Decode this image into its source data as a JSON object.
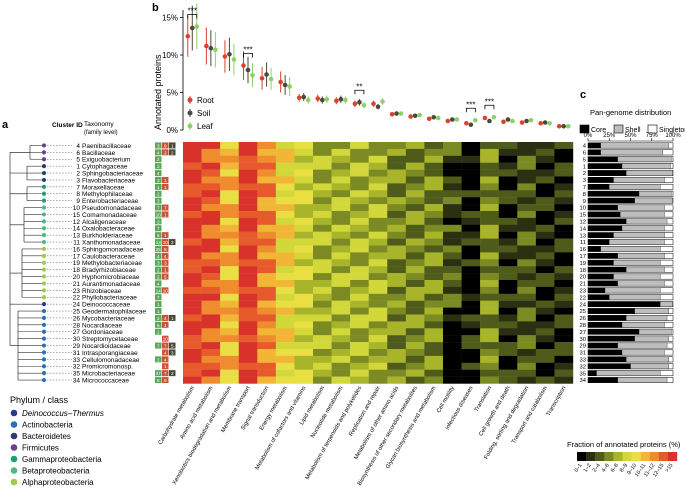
{
  "panels": {
    "a": "a",
    "b": "b",
    "c": "c"
  },
  "tree_header": {
    "cluster_id": "Cluster ID",
    "taxonomy": "Taxonomy",
    "taxonomy_sub": "(family level)"
  },
  "phylum_legend": {
    "title": "Phylum / class",
    "items": [
      {
        "label": "Deinococcus–Thermus",
        "color": "#2b3a8c",
        "italic": true
      },
      {
        "label": "Actinobacteria",
        "color": "#2f6fb5"
      },
      {
        "label": "Bacteroidetes",
        "color": "#2a3f6e"
      },
      {
        "label": "Firmicutes",
        "color": "#6b3f8f"
      },
      {
        "label": "Gammaproteobacteria",
        "color": "#1f9e74"
      },
      {
        "label": "Betaproteobacteria",
        "color": "#52b788"
      },
      {
        "label": "Alphaproteobacteria",
        "color": "#9ccc4a"
      }
    ]
  },
  "families": [
    {
      "id": "4",
      "name": "Paenibacillaceae",
      "green": "3",
      "red": "9",
      "dark": "1",
      "core": 0.15,
      "shell": 0.8
    },
    {
      "id": "6",
      "name": "Bacillaceae",
      "green": "4",
      "red": "2",
      "dark": "2",
      "core": 0.15,
      "shell": 0.73
    },
    {
      "id": "5",
      "name": "Exiguobacterium",
      "green": "2",
      "red": "",
      "dark": "",
      "core": 0.35,
      "shell": 0.63
    },
    {
      "id": "1",
      "name": "Cytophagaceae",
      "green": "2",
      "red": "",
      "dark": "",
      "core": 0.4,
      "shell": 0.57
    },
    {
      "id": "2",
      "name": "Sphingobacteriaceae",
      "green": "4",
      "red": "",
      "dark": "",
      "core": 0.45,
      "shell": 0.54
    },
    {
      "id": "3",
      "name": "Flavobacteriaceae",
      "green": "3",
      "red": "1",
      "dark": "",
      "core": 0.3,
      "shell": 0.6
    },
    {
      "id": "7",
      "name": "Moraxellaceae",
      "green": "1",
      "red": "1",
      "dark": "",
      "core": 0.25,
      "shell": 0.6
    },
    {
      "id": "8",
      "name": "Methylophilaceae",
      "green": "2",
      "red": "",
      "dark": "",
      "core": 0.6,
      "shell": 0.38
    },
    {
      "id": "9",
      "name": "Enterobacteriaceae",
      "green": "3",
      "red": "",
      "dark": "",
      "core": 0.55,
      "shell": 0.44
    },
    {
      "id": "10",
      "name": "Pseudomonadaceae",
      "green": "7",
      "red": "7",
      "dark": "",
      "core": 0.35,
      "shell": 0.55
    },
    {
      "id": "15",
      "name": "Comamonadaceae",
      "green": "10",
      "red": "1",
      "dark": "",
      "core": 0.38,
      "shell": 0.52
    },
    {
      "id": "12",
      "name": "Alcaligenaceae",
      "green": "3",
      "red": "",
      "dark": "",
      "core": 0.45,
      "shell": 0.48
    },
    {
      "id": "14",
      "name": "Oxalobacteraceae",
      "green": "7",
      "red": "",
      "dark": "",
      "core": 0.4,
      "shell": 0.5
    },
    {
      "id": "13",
      "name": "Burkholderiaceae",
      "green": "5",
      "red": "1",
      "dark": "",
      "core": 0.3,
      "shell": 0.6
    },
    {
      "id": "11",
      "name": "Xanthomonadaceae",
      "green": "13",
      "red": "10",
      "dark": "2",
      "core": 0.25,
      "shell": 0.65
    },
    {
      "id": "16",
      "name": "Sphingomonadaceae",
      "green": "25",
      "red": "8",
      "dark": "",
      "core": 0.15,
      "shell": 0.7
    },
    {
      "id": "17",
      "name": "Caulobacteraceae",
      "green": "4",
      "red": "4",
      "dark": "",
      "core": 0.35,
      "shell": 0.55
    },
    {
      "id": "19",
      "name": "Methylobacteriaceae",
      "green": "3",
      "red": "3",
      "dark": "",
      "core": 0.3,
      "shell": 0.55
    },
    {
      "id": "18",
      "name": "Bradyrhizobiaceae",
      "green": "2",
      "red": "1",
      "dark": "",
      "core": 0.45,
      "shell": 0.45
    },
    {
      "id": "20",
      "name": "Hyphomicrobiaceae",
      "green": "2",
      "red": "5",
      "dark": "",
      "core": 0.3,
      "shell": 0.55
    },
    {
      "id": "21",
      "name": "Aurantimonadaceae",
      "green": "4",
      "red": "",
      "dark": "",
      "core": 0.35,
      "shell": 0.55
    },
    {
      "id": "23",
      "name": "Rhizobiaceae",
      "green": "14",
      "red": "10",
      "dark": "",
      "core": 0.2,
      "shell": 0.65
    },
    {
      "id": "22",
      "name": "Phyllobacteriaceae",
      "green": "7",
      "red": "",
      "dark": "",
      "core": 0.25,
      "shell": 0.6
    },
    {
      "id": "24",
      "name": "Deinococcaceae",
      "green": "1",
      "red": "",
      "dark": "",
      "core": 0.85,
      "shell": 0.14
    },
    {
      "id": "25",
      "name": "Geodermatophilaceae",
      "green": "1",
      "red": "",
      "dark": "",
      "core": 0.55,
      "shell": 0.4
    },
    {
      "id": "26",
      "name": "Mycobacteriaceae",
      "green": "2",
      "red": "4",
      "dark": "1",
      "core": 0.45,
      "shell": 0.48
    },
    {
      "id": "28",
      "name": "Nocardiaceae",
      "green": "6",
      "red": "1",
      "dark": "",
      "core": 0.4,
      "shell": 0.5
    },
    {
      "id": "27",
      "name": "Gordoniaceae",
      "green": "1",
      "red": "",
      "dark": "",
      "core": 0.6,
      "shell": 0.38
    },
    {
      "id": "30",
      "name": "Streptomycetaceae",
      "green": "",
      "red": "10",
      "dark": "",
      "core": 0.55,
      "shell": 0.4
    },
    {
      "id": "29",
      "name": "Nocardioidaceae",
      "green": "7",
      "red": "7",
      "dark": "5",
      "core": 0.35,
      "shell": 0.58
    },
    {
      "id": "31",
      "name": "Intrasporangiaceae",
      "green": "",
      "red": "4",
      "dark": "3",
      "core": 0.4,
      "shell": 0.5
    },
    {
      "id": "33",
      "name": "Cellulomonadaceae",
      "green": "2",
      "red": "4",
      "dark": "",
      "core": 0.45,
      "shell": 0.5
    },
    {
      "id": "32",
      "name": "Promicromonosp.",
      "green": "",
      "red": "1",
      "dark": "",
      "core": 0.5,
      "shell": 0.45
    },
    {
      "id": "35",
      "name": "Microbacteriaceae",
      "green": "37",
      "red": "7",
      "dark": "2",
      "core": 0.1,
      "shell": 0.75
    },
    {
      "id": "34",
      "name": "Micrococcaceae",
      "green": "6",
      "red": "9",
      "dark": "",
      "core": 0.35,
      "shell": 0.58
    }
  ],
  "heatmap": {
    "categories": [
      "Carbohydrate metabolism",
      "Amino acid metabolism",
      "Xenobiotics biodegradation and metabolism",
      "Membrane transport",
      "Signal transduction",
      "Energy metabolism",
      "Metabolism of cofactors and vitamins",
      "Lipid metabolism",
      "Nucleotide metabolism",
      "Metabolism of terpenoids and polyketides",
      "Replication and repair",
      "Metabolism of other amino acids",
      "Biosynthesis of other secondary metabolites",
      "Glycan biosynthesis and metabolism",
      "Cell motility",
      "Infectious diseases",
      "Translation",
      "Cell growth and death",
      "Folding, sorting and degradation",
      "Transport and catabolism",
      "Transcription"
    ],
    "legend_title": "Fraction of annotated proteins (%)",
    "legend_bins": [
      "0–1",
      "1–2",
      "2–4",
      "4–6",
      "6–8",
      "8–9",
      "9–10",
      "10–11",
      "11–12",
      "12–15",
      ">15"
    ],
    "legend_colors": [
      "#000000",
      "#2b3012",
      "#4e5b1a",
      "#7b8a22",
      "#a8b42a",
      "#d2d83a",
      "#eadf42",
      "#f1b636",
      "#ee8c2e",
      "#e75a2b",
      "#d8322a"
    ]
  },
  "pangenome": {
    "title": "Pan-genome distribution",
    "legend": [
      "Core",
      "Shell",
      "Singletons"
    ],
    "ticks": [
      "0%",
      "25%",
      "50%",
      "75%",
      "100%"
    ],
    "colors": {
      "core": "#000000",
      "shell": "#bdbdbd",
      "singletons": "#ffffff"
    }
  },
  "chart_data": {
    "type": "scatter",
    "ylabel": "Annotated proteins",
    "yticks": [
      "0%",
      "5%",
      "10%",
      "15%"
    ],
    "ylim": [
      0,
      16
    ],
    "legend_position": "top-left",
    "series": [
      {
        "name": "Root",
        "color": "#d9432b",
        "values": [
          12.5,
          11.2,
          9.8,
          8.6,
          6.9,
          6.4,
          4.3,
          4.2,
          3.9,
          3.5,
          3.5,
          2.1,
          1.8,
          1.5,
          1.2,
          0.9,
          1.6,
          1.1,
          1.0,
          0.9,
          0.5
        ]
      },
      {
        "name": "Soil",
        "color": "#4a4a3a",
        "values": [
          13.6,
          10.9,
          10.1,
          8.0,
          7.4,
          6.0,
          4.4,
          4.0,
          4.1,
          3.7,
          3.1,
          2.2,
          1.9,
          1.7,
          1.4,
          0.7,
          1.2,
          1.4,
          1.2,
          1.0,
          0.5
        ]
      },
      {
        "name": "Leaf",
        "color": "#8fcf6a",
        "values": [
          13.8,
          10.7,
          9.4,
          7.3,
          6.8,
          5.8,
          4.0,
          4.1,
          4.0,
          3.3,
          3.8,
          2.2,
          2.0,
          1.6,
          1.4,
          1.3,
          1.7,
          1.2,
          1.3,
          0.9,
          0.5
        ]
      }
    ],
    "significance": [
      {
        "category_index": 0,
        "label": "***"
      },
      {
        "category_index": 3,
        "label": "***"
      },
      {
        "category_index": 9,
        "label": "**"
      },
      {
        "category_index": 15,
        "label": "***"
      },
      {
        "category_index": 16,
        "label": "***"
      }
    ]
  }
}
